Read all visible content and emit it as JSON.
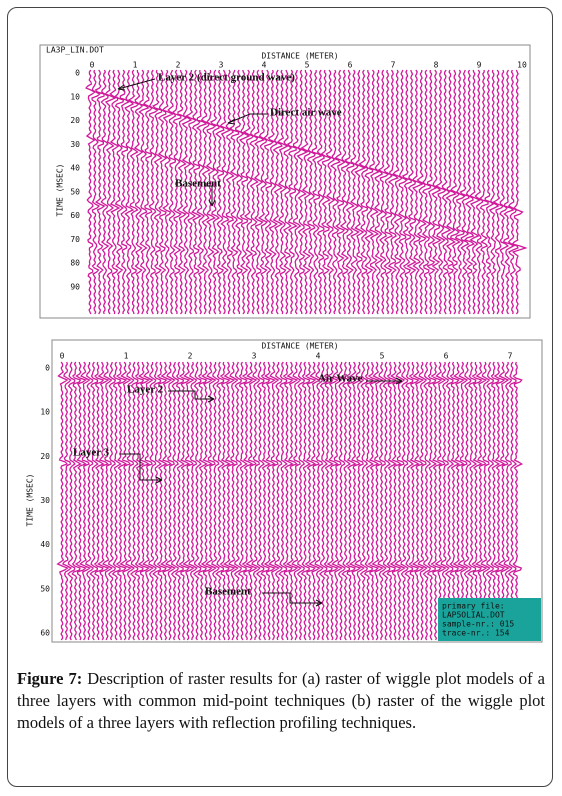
{
  "figure": {
    "panel_a": {
      "header": "LA3P_LIN.DOT",
      "x_axis_label": "DISTANCE (METER)",
      "y_axis_label": "TIME (MSEC)",
      "x_ticks": [
        "0",
        "1",
        "2",
        "3",
        "4",
        "5",
        "6",
        "7",
        "8",
        "9",
        "10"
      ],
      "y_ticks": [
        "0",
        "10",
        "20",
        "30",
        "40",
        "50",
        "60",
        "70",
        "80",
        "90"
      ],
      "annotations": [
        "Layer 2 (direct ground wave)",
        "Direct air wave",
        "Basement"
      ]
    },
    "panel_b": {
      "x_axis_label": "DISTANCE (METER)",
      "y_axis_label": "TIME (MSEC)",
      "x_ticks": [
        "0",
        "1",
        "2",
        "3",
        "4",
        "5",
        "6",
        "7"
      ],
      "y_ticks": [
        "0",
        "10",
        "20",
        "30",
        "40",
        "50",
        "60"
      ],
      "annotations": [
        "Air Wave",
        "Layer 2",
        "Layer 3",
        "Basement"
      ],
      "info_box": [
        "primary file:",
        "LAP5OLIAL.DOT",
        "sample-nr.: 015",
        "trace-nr.: 154"
      ]
    }
  },
  "caption": {
    "label": "Figure 7:",
    "text": "Description of raster results for (a) raster of wiggle plot models of a three layers with common mid-point techniques (b) raster of the wiggle plot models of a three layers with reflection profiling techniques."
  }
}
